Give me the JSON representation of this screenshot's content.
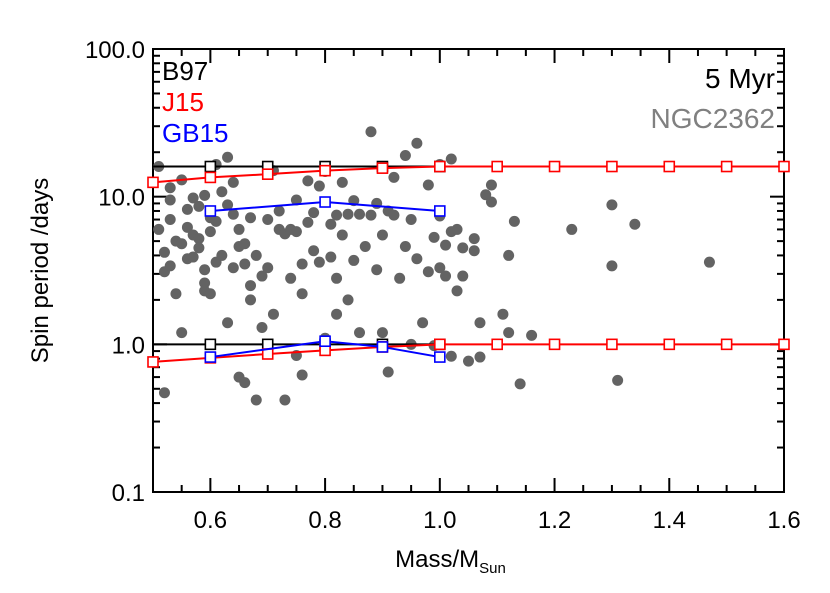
{
  "chart_data": {
    "type": "scatter",
    "xlabel": "Mass/M",
    "xlabel_sub": "Sun",
    "ylabel": "Spin period /days",
    "xlim": [
      0.5,
      1.6
    ],
    "ylim": [
      0.1,
      100.0
    ],
    "yscale": "log",
    "grid": false,
    "x_ticks": [
      0.6,
      0.8,
      1.0,
      1.2,
      1.4,
      1.6
    ],
    "x_tick_labels": [
      "0.6",
      "0.8",
      "1.0",
      "1.2",
      "1.4",
      "1.6"
    ],
    "y_ticks": [
      0.1,
      1.0,
      10.0,
      100.0
    ],
    "y_tick_labels": [
      "0.1",
      "1.0",
      "10.0",
      "100.0"
    ],
    "legend_left": [
      {
        "label": "B97",
        "color": "#000000"
      },
      {
        "label": "J15",
        "color": "#ff0000"
      },
      {
        "label": "GB15",
        "color": "#0000ff"
      }
    ],
    "annotations": [
      {
        "label": "5 Myr",
        "color": "#000000"
      },
      {
        "label": "NGC2362",
        "color": "#808080"
      }
    ],
    "scatter_color": "#636363",
    "scatter_points": [
      [
        0.51,
        16.0
      ],
      [
        0.51,
        6.0
      ],
      [
        0.52,
        4.2
      ],
      [
        0.52,
        3.1
      ],
      [
        0.52,
        0.47
      ],
      [
        0.53,
        11.5
      ],
      [
        0.53,
        9.5
      ],
      [
        0.53,
        7.0
      ],
      [
        0.53,
        3.4
      ],
      [
        0.54,
        5.0
      ],
      [
        0.54,
        2.2
      ],
      [
        0.55,
        13.0
      ],
      [
        0.55,
        4.8
      ],
      [
        0.55,
        1.2
      ],
      [
        0.56,
        8.2
      ],
      [
        0.56,
        6.2
      ],
      [
        0.56,
        3.8
      ],
      [
        0.57,
        9.8
      ],
      [
        0.57,
        5.5
      ],
      [
        0.57,
        3.9
      ],
      [
        0.58,
        8.6
      ],
      [
        0.58,
        5.2
      ],
      [
        0.58,
        4.5
      ],
      [
        0.59,
        10.2
      ],
      [
        0.59,
        3.2
      ],
      [
        0.59,
        2.6
      ],
      [
        0.59,
        2.3
      ],
      [
        0.6,
        7.2
      ],
      [
        0.6,
        5.8
      ],
      [
        0.6,
        2.2
      ],
      [
        0.6,
        1.0
      ],
      [
        0.61,
        16.5
      ],
      [
        0.61,
        6.8
      ],
      [
        0.61,
        3.6
      ],
      [
        0.62,
        10.8
      ],
      [
        0.62,
        4.0
      ],
      [
        0.63,
        18.5
      ],
      [
        0.63,
        8.8
      ],
      [
        0.63,
        1.4
      ],
      [
        0.64,
        12.5
      ],
      [
        0.64,
        7.6
      ],
      [
        0.64,
        3.3
      ],
      [
        0.65,
        0.6
      ],
      [
        0.65,
        6.0
      ],
      [
        0.65,
        4.6
      ],
      [
        0.66,
        4.8
      ],
      [
        0.66,
        3.5
      ],
      [
        0.66,
        0.55
      ],
      [
        0.67,
        7.2
      ],
      [
        0.67,
        2.5
      ],
      [
        0.67,
        2.0
      ],
      [
        0.68,
        0.42
      ],
      [
        0.68,
        4.0
      ],
      [
        0.69,
        2.9
      ],
      [
        0.69,
        1.3
      ],
      [
        0.7,
        7.0
      ],
      [
        0.7,
        3.3
      ],
      [
        0.71,
        1.6
      ],
      [
        0.71,
        15.0
      ],
      [
        0.72,
        8.0
      ],
      [
        0.72,
        6.0
      ],
      [
        0.73,
        5.6
      ],
      [
        0.73,
        0.42
      ],
      [
        0.74,
        6.0
      ],
      [
        0.74,
        2.8
      ],
      [
        0.75,
        9.5
      ],
      [
        0.75,
        5.8
      ],
      [
        0.75,
        0.84
      ],
      [
        0.76,
        3.5
      ],
      [
        0.76,
        2.2
      ],
      [
        0.76,
        0.62
      ],
      [
        0.77,
        12.8
      ],
      [
        0.77,
        6.7
      ],
      [
        0.78,
        7.8
      ],
      [
        0.78,
        4.3
      ],
      [
        0.79,
        11.8
      ],
      [
        0.79,
        3.6
      ],
      [
        0.8,
        14.8
      ],
      [
        0.8,
        9.2
      ],
      [
        0.8,
        1.1
      ],
      [
        0.81,
        6.5
      ],
      [
        0.81,
        3.9
      ],
      [
        0.82,
        7.5
      ],
      [
        0.82,
        2.8
      ],
      [
        0.82,
        1.6
      ],
      [
        0.83,
        12.5
      ],
      [
        0.83,
        5.5
      ],
      [
        0.84,
        7.6
      ],
      [
        0.84,
        2.0
      ],
      [
        0.85,
        9.4
      ],
      [
        0.85,
        3.7
      ],
      [
        0.86,
        7.6
      ],
      [
        0.86,
        1.2
      ],
      [
        0.87,
        4.6
      ],
      [
        0.88,
        27.5
      ],
      [
        0.88,
        7.5
      ],
      [
        0.89,
        9.0
      ],
      [
        0.89,
        3.2
      ],
      [
        0.9,
        5.5
      ],
      [
        0.9,
        1.2
      ],
      [
        0.91,
        0.65
      ],
      [
        0.91,
        8.0
      ],
      [
        0.92,
        13.5
      ],
      [
        0.92,
        7.5
      ],
      [
        0.93,
        2.8
      ],
      [
        0.94,
        19.0
      ],
      [
        0.94,
        4.6
      ],
      [
        0.95,
        7.0
      ],
      [
        0.95,
        1.0
      ],
      [
        0.96,
        3.8
      ],
      [
        0.96,
        23.0
      ],
      [
        0.97,
        1.4
      ],
      [
        0.98,
        12.0
      ],
      [
        0.98,
        3.1
      ],
      [
        0.99,
        5.3
      ],
      [
        0.99,
        0.98
      ],
      [
        1.0,
        7.4
      ],
      [
        1.0,
        16.5
      ],
      [
        1.0,
        3.3
      ],
      [
        1.01,
        2.9
      ],
      [
        1.01,
        4.7
      ],
      [
        1.02,
        18.0
      ],
      [
        1.02,
        5.8
      ],
      [
        1.02,
        0.83
      ],
      [
        1.03,
        6.0
      ],
      [
        1.03,
        2.3
      ],
      [
        1.04,
        4.5
      ],
      [
        1.04,
        2.9
      ],
      [
        1.05,
        0.77
      ],
      [
        1.06,
        4.3
      ],
      [
        1.06,
        5.2
      ],
      [
        1.07,
        0.82
      ],
      [
        1.07,
        1.4
      ],
      [
        1.08,
        10.3
      ],
      [
        1.09,
        12.0
      ],
      [
        1.09,
        9.2
      ],
      [
        1.1,
        1.0
      ],
      [
        1.11,
        1.6
      ],
      [
        1.12,
        1.2
      ],
      [
        1.12,
        4.0
      ],
      [
        1.13,
        6.8
      ],
      [
        1.14,
        0.54
      ],
      [
        1.16,
        1.15
      ],
      [
        1.23,
        6.0
      ],
      [
        1.3,
        8.8
      ],
      [
        1.31,
        0.57
      ],
      [
        1.3,
        3.4
      ],
      [
        1.34,
        6.5
      ],
      [
        1.47,
        3.6
      ]
    ],
    "series": [
      {
        "name": "B97",
        "color": "#000000",
        "lines": [
          {
            "x": [
              0.5,
              0.6,
              0.7,
              0.8,
              0.9,
              1.0
            ],
            "y": [
              16.0,
              16.0,
              16.0,
              16.0,
              16.0,
              16.0
            ],
            "markers": [
              0.6,
              0.7,
              0.8,
              0.9,
              1.0
            ]
          },
          {
            "x": [
              0.5,
              0.6,
              0.7,
              0.8,
              0.9,
              1.0
            ],
            "y": [
              1.0,
              1.0,
              1.0,
              1.0,
              1.0,
              1.0
            ],
            "markers": [
              0.6,
              0.7,
              0.8,
              0.9,
              1.0
            ]
          }
        ]
      },
      {
        "name": "J15",
        "color": "#ff0000",
        "lines": [
          {
            "x": [
              0.5,
              0.6,
              0.7,
              0.8,
              0.9,
              1.0,
              1.1,
              1.2,
              1.3,
              1.4,
              1.5,
              1.6
            ],
            "y": [
              12.5,
              13.5,
              14.2,
              15.0,
              15.6,
              16.0,
              16.0,
              16.0,
              16.0,
              16.0,
              16.0,
              16.0
            ],
            "markers": [
              0.5,
              0.6,
              0.7,
              0.8,
              0.9,
              1.0,
              1.1,
              1.2,
              1.3,
              1.4,
              1.5,
              1.6
            ]
          },
          {
            "x": [
              0.5,
              0.6,
              0.7,
              0.8,
              0.9,
              1.0,
              1.1,
              1.2,
              1.3,
              1.4,
              1.5,
              1.6
            ],
            "y": [
              0.76,
              0.81,
              0.86,
              0.91,
              0.96,
              1.0,
              1.0,
              1.0,
              1.0,
              1.0,
              1.0,
              1.0
            ],
            "markers": [
              0.5,
              0.6,
              0.7,
              0.8,
              0.9,
              1.0,
              1.1,
              1.2,
              1.3,
              1.4,
              1.5,
              1.6
            ]
          }
        ]
      },
      {
        "name": "GB15",
        "color": "#0000ff",
        "lines": [
          {
            "x": [
              0.6,
              0.8,
              1.0
            ],
            "y": [
              8.0,
              9.2,
              8.0
            ],
            "markers": [
              0.6,
              0.8,
              1.0
            ]
          },
          {
            "x": [
              0.6,
              0.8,
              0.9,
              1.0
            ],
            "y": [
              0.82,
              1.05,
              0.96,
              0.82
            ],
            "markers": [
              0.6,
              0.8,
              0.9,
              1.0
            ]
          }
        ]
      }
    ]
  }
}
